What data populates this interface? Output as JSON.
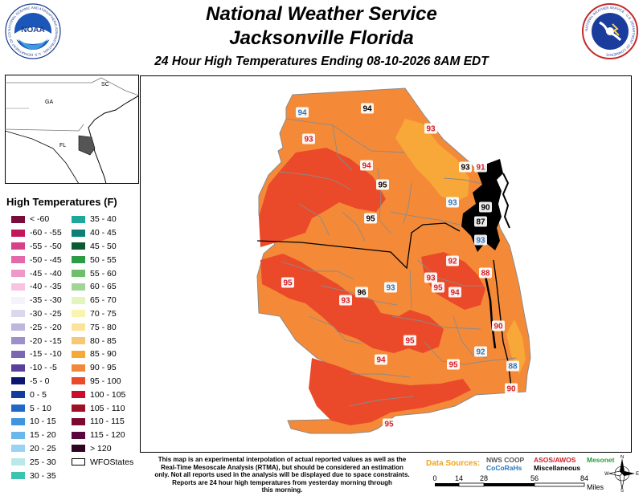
{
  "header": {
    "title_line1": "National Weather Service",
    "title_line2": "Jacksonville Florida",
    "subtitle": "24 Hour High Temperatures Ending 08-10-2026 8AM EDT",
    "left_logo_text": "NOAA",
    "left_logo_ring_text": "NATIONAL OCEANIC AND ATMOSPHERIC ADMINISTRATION · U.S. DEPARTMENT OF COMMERCE",
    "right_logo_ring_text": "NATIONAL WEATHER SERVICE · U.S. DEPARTMENT OF COMMERCE"
  },
  "inset": {
    "labels": [
      "SC",
      "GA",
      "FL"
    ]
  },
  "legend": {
    "title": "High Temperatures (F)",
    "column1": [
      {
        "label": "< -60",
        "color": "#7a0c3a"
      },
      {
        "label": "-60 - -55",
        "color": "#c2185b"
      },
      {
        "label": "-55 - -50",
        "color": "#d6418a"
      },
      {
        "label": "-50 - -45",
        "color": "#e26aab"
      },
      {
        "label": "-45 - -40",
        "color": "#ee97c8"
      },
      {
        "label": "-40 - -35",
        "color": "#f7c3e0"
      },
      {
        "label": "-35 - -30",
        "color": "#f4f2fa"
      },
      {
        "label": "-30 - -25",
        "color": "#dcd8ec"
      },
      {
        "label": "-25 - -20",
        "color": "#bdb6dd"
      },
      {
        "label": "-20 - -15",
        "color": "#9c8fca"
      },
      {
        "label": "-15 - -10",
        "color": "#7a67b4"
      },
      {
        "label": "-10 - -5",
        "color": "#5b3f9c"
      },
      {
        "label": "-5 - 0",
        "color": "#0c1670"
      },
      {
        "label": "0 - 5",
        "color": "#123d9c"
      },
      {
        "label": "5 - 10",
        "color": "#1f68c6"
      },
      {
        "label": "10 - 15",
        "color": "#3f94e0"
      },
      {
        "label": "15 - 20",
        "color": "#6ab7ec"
      },
      {
        "label": "20 - 25",
        "color": "#98d3f3"
      },
      {
        "label": "25 - 30",
        "color": "#b8e8ea"
      },
      {
        "label": "30 - 35",
        "color": "#3cc4b0"
      }
    ],
    "column2": [
      {
        "label": "35 - 40",
        "color": "#1ea79a"
      },
      {
        "label": "40 - 45",
        "color": "#0f7f76"
      },
      {
        "label": "45 - 50",
        "color": "#0c5a34"
      },
      {
        "label": "50 - 55",
        "color": "#2d9a46"
      },
      {
        "label": "55 - 60",
        "color": "#6fbe6c"
      },
      {
        "label": "60 - 65",
        "color": "#a2d49a"
      },
      {
        "label": "65 - 70",
        "color": "#e3f5bd"
      },
      {
        "label": "70 - 75",
        "color": "#fbf3b0"
      },
      {
        "label": "75 - 80",
        "color": "#fbe39a"
      },
      {
        "label": "80 - 85",
        "color": "#f8c773"
      },
      {
        "label": "85 - 90",
        "color": "#f6a83a"
      },
      {
        "label": "90 - 95",
        "color": "#f08a3a"
      },
      {
        "label": "95 - 100",
        "color": "#e84a2a"
      },
      {
        "label": "100 - 105",
        "color": "#c8102e"
      },
      {
        "label": "105 - 110",
        "color": "#a01024"
      },
      {
        "label": "110 - 115",
        "color": "#7a0a30"
      },
      {
        "label": "115 - 120",
        "color": "#58083a"
      },
      {
        "label": "> 120",
        "color": "#2e0420"
      },
      {
        "label": "WFOStates",
        "color": "#ffffff"
      }
    ]
  },
  "stations": [
    {
      "value": "94",
      "type": "nws",
      "color": "#000000"
    },
    {
      "value": "94",
      "type": "cocorahs",
      "color": "#2a78c6"
    },
    {
      "value": "93",
      "type": "asos",
      "color": "#d11f2a"
    },
    {
      "value": "93",
      "type": "asos",
      "color": "#d11f2a"
    },
    {
      "value": "94",
      "type": "asos",
      "color": "#d11f2a"
    },
    {
      "value": "95",
      "type": "nws",
      "color": "#000000"
    },
    {
      "value": "93",
      "type": "nws",
      "color": "#000000"
    },
    {
      "value": "91",
      "type": "asos",
      "color": "#d11f2a"
    },
    {
      "value": "93",
      "type": "cocorahs",
      "color": "#2a78c6"
    },
    {
      "value": "90",
      "type": "nws",
      "color": "#000000"
    },
    {
      "value": "95",
      "type": "nws",
      "color": "#000000"
    },
    {
      "value": "87",
      "type": "nws",
      "color": "#000000"
    },
    {
      "value": "93",
      "type": "cocorahs",
      "color": "#2a78c6"
    },
    {
      "value": "92",
      "type": "asos",
      "color": "#d11f2a"
    },
    {
      "value": "88",
      "type": "asos",
      "color": "#d11f2a"
    },
    {
      "value": "95",
      "type": "asos",
      "color": "#d11f2a"
    },
    {
      "value": "96",
      "type": "nws",
      "color": "#000000"
    },
    {
      "value": "93",
      "type": "cocorahs",
      "color": "#2a78c6"
    },
    {
      "value": "93",
      "type": "asos",
      "color": "#d11f2a"
    },
    {
      "value": "95",
      "type": "asos",
      "color": "#d11f2a"
    },
    {
      "value": "94",
      "type": "asos",
      "color": "#d11f2a"
    },
    {
      "value": "93",
      "type": "asos",
      "color": "#d11f2a"
    },
    {
      "value": "90",
      "type": "asos",
      "color": "#d11f2a"
    },
    {
      "value": "95",
      "type": "asos",
      "color": "#d11f2a"
    },
    {
      "value": "94",
      "type": "asos",
      "color": "#d11f2a"
    },
    {
      "value": "92",
      "type": "cocorahs",
      "color": "#2a78c6"
    },
    {
      "value": "95",
      "type": "asos",
      "color": "#d11f2a"
    },
    {
      "value": "88",
      "type": "cocorahs",
      "color": "#2a78c6"
    },
    {
      "value": "90",
      "type": "asos",
      "color": "#d11f2a"
    },
    {
      "value": "95",
      "type": "asos",
      "color": "#d11f2a"
    }
  ],
  "footer": {
    "disclaimer": [
      "This map is an experimental interpolation of actual reported values as well as the",
      "Real-Time Mesoscale Analysis (RTMA), but should be considered an estimation",
      "only. Not all reports used in the analysis will be displayed due to space constraints.",
      "Reports are 24 hour high temperatures from yesterday morning through",
      "this morning."
    ],
    "data_sources_label": "Data Sources:",
    "sources": [
      {
        "name": "NWS COOP",
        "color": "#555555"
      },
      {
        "name": "ASOS/AWOS",
        "color": "#d11f2a"
      },
      {
        "name": "Mesonet",
        "color": "#2e9a3a"
      },
      {
        "name": "CoCoRaHs",
        "color": "#2a78c6"
      },
      {
        "name": "Miscellaneous",
        "color": "#000000"
      }
    ],
    "scale": {
      "ticks": [
        "0",
        "14",
        "28",
        "56",
        "84"
      ],
      "unit": "Miles"
    },
    "compass": {
      "n": "N",
      "e": "E",
      "s": "S",
      "w": "W"
    }
  }
}
